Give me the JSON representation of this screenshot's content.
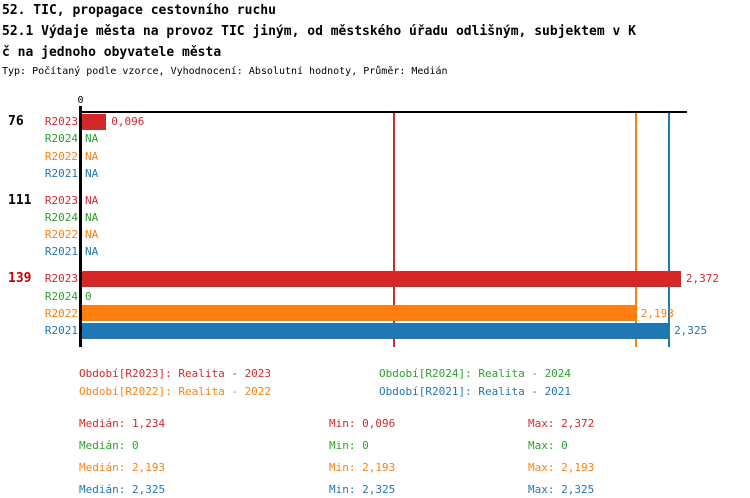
{
  "header": {
    "title_line1": "52. TIC, propagace cestovního ruchu",
    "title_line2": "52.1 Výdaje města na provoz TIC jiným, od městského úřadu odlišným, subjektem v K",
    "title_line3": "č na jednoho obyvatele města",
    "meta": "Typ: Počítaný podle vzorce, Vyhodnocení: Absolutní hodnoty, Průměr: Medián"
  },
  "colors": {
    "R2023": "#d62728",
    "R2024": "#2ca02c",
    "R2022": "#ff7f0e",
    "R2021": "#1f77b4",
    "axis": "#000000",
    "highlight_group": "#cc0000",
    "group_label": "#000000"
  },
  "chart_data": {
    "type": "bar",
    "orientation": "horizontal",
    "title": "52.1 Výdaje města na provoz TIC jiným, od městského úřadu odlišným, subjektem v Kč na jednoho obyvatele města",
    "x_tick_label": "0",
    "x_axis_origin": 0,
    "series_order": [
      "R2023",
      "R2024",
      "R2022",
      "R2021"
    ],
    "groups": [
      {
        "label": "76",
        "highlight": false,
        "rows": [
          {
            "series": "R2023",
            "value": 0.096,
            "display": "0,096",
            "na": false
          },
          {
            "series": "R2024",
            "value": null,
            "display": "NA",
            "na": true
          },
          {
            "series": "R2022",
            "value": null,
            "display": "NA",
            "na": true
          },
          {
            "series": "R2021",
            "value": null,
            "display": "NA",
            "na": true
          }
        ]
      },
      {
        "label": "111",
        "highlight": false,
        "rows": [
          {
            "series": "R2023",
            "value": null,
            "display": "NA",
            "na": true
          },
          {
            "series": "R2024",
            "value": null,
            "display": "NA",
            "na": true
          },
          {
            "series": "R2022",
            "value": null,
            "display": "NA",
            "na": true
          },
          {
            "series": "R2021",
            "value": null,
            "display": "NA",
            "na": true
          }
        ]
      },
      {
        "label": "139",
        "highlight": true,
        "rows": [
          {
            "series": "R2023",
            "value": 2.372,
            "display": "2,372",
            "na": false
          },
          {
            "series": "R2024",
            "value": 0,
            "display": "0",
            "na": false
          },
          {
            "series": "R2022",
            "value": 2.193,
            "display": "2,193",
            "na": false
          },
          {
            "series": "R2021",
            "value": 2.325,
            "display": "2,325",
            "na": false
          }
        ]
      }
    ],
    "median_lines": [
      {
        "series": "R2023",
        "value": 1.234
      },
      {
        "series": "R2022",
        "value": 2.193
      },
      {
        "series": "R2021",
        "value": 2.325
      }
    ]
  },
  "legend": {
    "items": [
      {
        "series": "R2023",
        "label": "Období[R2023]: Realita - 2023"
      },
      {
        "series": "R2024",
        "label": "Období[R2024]: Realita - 2024"
      },
      {
        "series": "R2022",
        "label": "Období[R2022]: Realita - 2022"
      },
      {
        "series": "R2021",
        "label": "Období[R2021]: Realita - 2021"
      }
    ]
  },
  "stats": {
    "labels": {
      "median": "Medián",
      "min": "Min",
      "max": "Max"
    },
    "rows": [
      {
        "series": "R2023",
        "median": "1,234",
        "min": "0,096",
        "max": "2,372"
      },
      {
        "series": "R2024",
        "median": "0",
        "min": "0",
        "max": "0"
      },
      {
        "series": "R2022",
        "median": "2,193",
        "min": "2,193",
        "max": "2,193"
      },
      {
        "series": "R2021",
        "median": "2,325",
        "min": "2,325",
        "max": "2,325"
      }
    ]
  }
}
